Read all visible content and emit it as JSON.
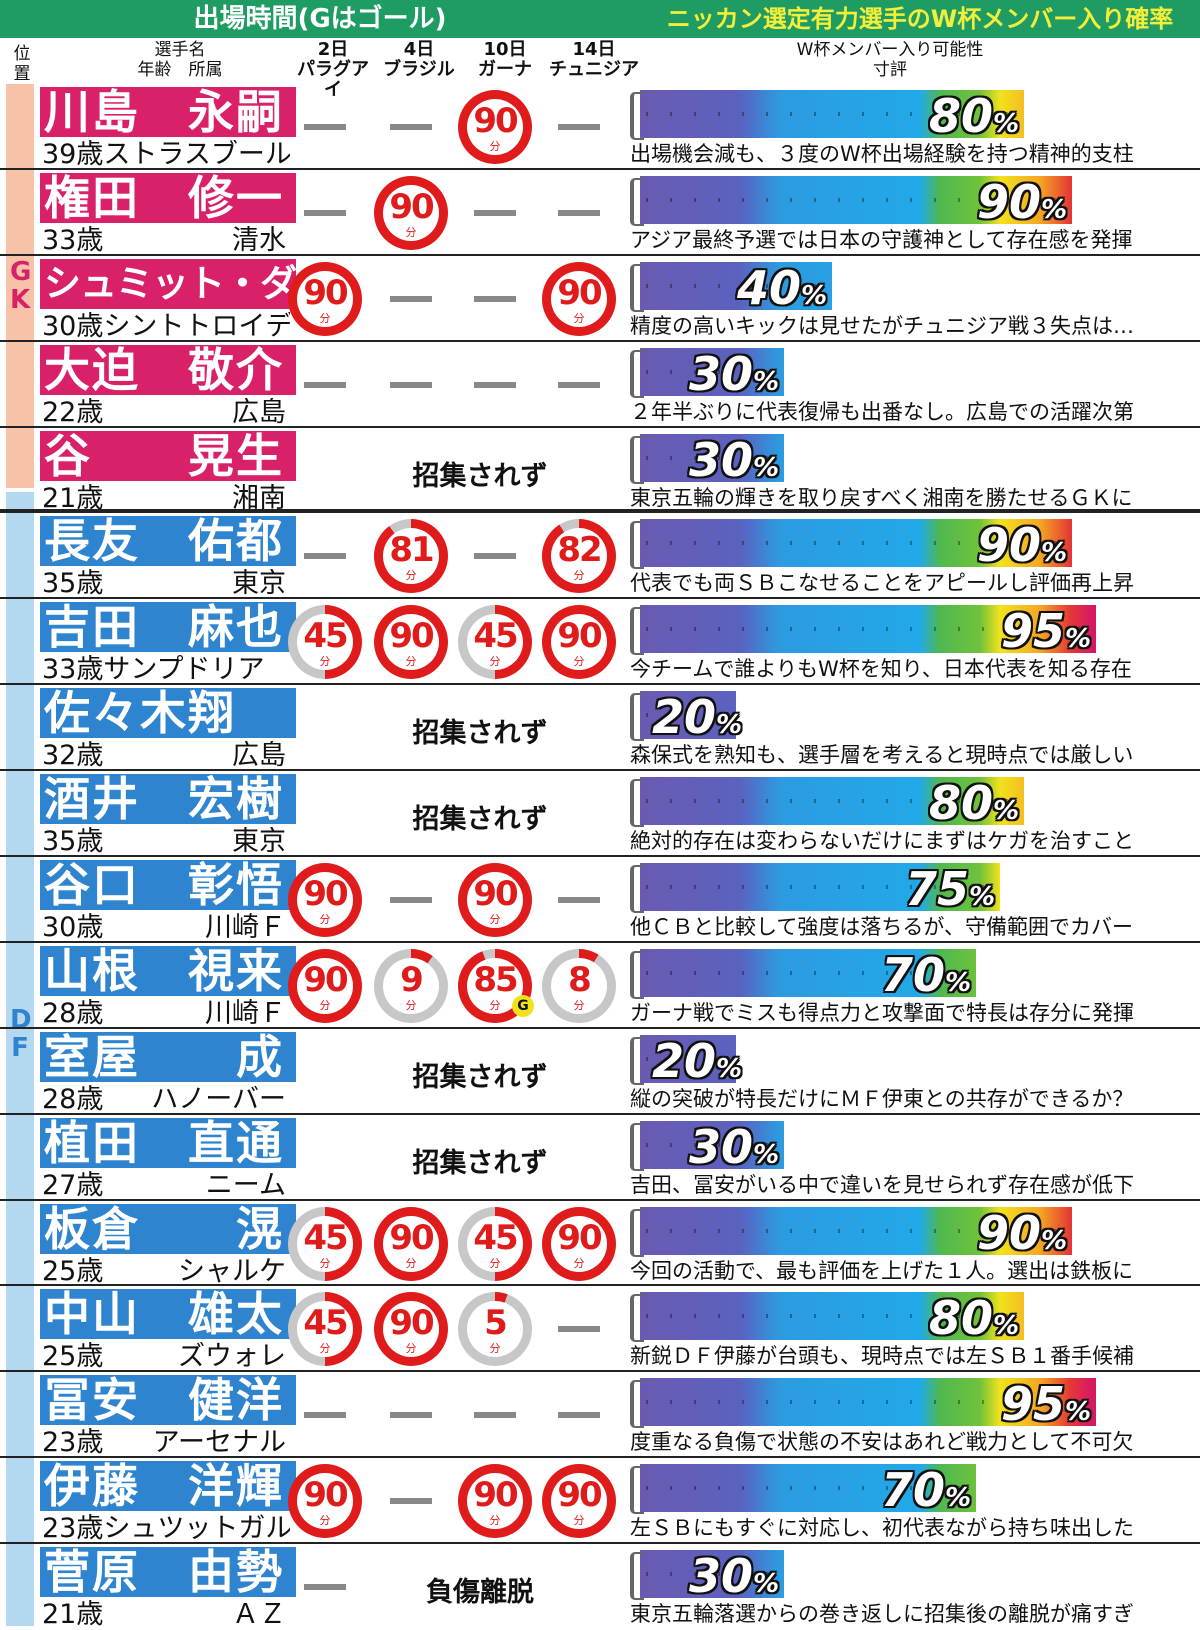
{
  "header": {
    "left": "出場時間(Gはゴール)",
    "right": "ニッカン選定有力選手のW杯メンバー入り確率"
  },
  "columns": {
    "position": "位置",
    "name": "選手名",
    "age_club": "年齢　所属",
    "matches": [
      {
        "date": "2日",
        "opponent": "パラグアイ"
      },
      {
        "date": "4日",
        "opponent": "ブラジル"
      },
      {
        "date": "10日",
        "opponent": "ガーナ"
      },
      {
        "date": "14日",
        "opponent": "チュニジア"
      }
    ],
    "possibility": "W杯メンバー入り可能性",
    "comment": "寸評"
  },
  "positions": {
    "gk": "GK",
    "df": "DF"
  },
  "not_called": "招集されず",
  "injured": "負傷離脱",
  "minute_unit": "分",
  "goal_mark": "G",
  "percent_unit": "%",
  "players": [
    {
      "pos": "gk",
      "name": "川島　永嗣",
      "age": "39歳",
      "club": "ストラスブール",
      "club_left": true,
      "minutes": [
        "-",
        "-",
        "90",
        "-"
      ],
      "goals": [
        false,
        false,
        false,
        false
      ],
      "status": "",
      "pct": 80,
      "comment": "出場機会減も、３度のW杯出場経験を持つ精神的支柱"
    },
    {
      "pos": "gk",
      "name": "権田　修一",
      "age": "33歳",
      "club": "清水",
      "club_left": false,
      "minutes": [
        "-",
        "90",
        "-",
        "-"
      ],
      "goals": [
        false,
        false,
        false,
        false
      ],
      "status": "",
      "pct": 90,
      "comment": "アジア最終予選では日本の守護神として存在感を発揮"
    },
    {
      "pos": "gk",
      "name": "シュミット・ダニエル",
      "age": "30歳",
      "club": "シントトロイデン",
      "club_left": true,
      "minutes": [
        "90",
        "-",
        "-",
        "90"
      ],
      "goals": [
        false,
        false,
        false,
        false
      ],
      "status": "",
      "pct": 40,
      "comment": "精度の高いキックは見せたがチュニジア戦３失点は…"
    },
    {
      "pos": "gk",
      "name": "大迫　敬介",
      "age": "22歳",
      "club": "広島",
      "club_left": false,
      "minutes": [
        "-",
        "-",
        "-",
        "-"
      ],
      "goals": [
        false,
        false,
        false,
        false
      ],
      "status": "",
      "pct": 30,
      "comment": "２年半ぶりに代表復帰も出番なし。広島での活躍次第"
    },
    {
      "pos": "gk",
      "name": "谷　　晃生",
      "age": "21歳",
      "club": "湘南",
      "club_left": false,
      "minutes": [],
      "goals": [],
      "status": "not_called",
      "pct": 30,
      "comment": "東京五輪の輝きを取り戻すべく湘南を勝たせるＧＫに"
    },
    {
      "pos": "df",
      "name": "長友　佑都",
      "age": "35歳",
      "club": "東京",
      "club_left": false,
      "minutes": [
        "-",
        "81",
        "-",
        "82"
      ],
      "goals": [
        false,
        false,
        false,
        false
      ],
      "status": "",
      "pct": 90,
      "comment": "代表でも両ＳＢこなせることをアピールし評価再上昇"
    },
    {
      "pos": "df",
      "name": "吉田　麻也",
      "age": "33歳",
      "club": "サンプドリア",
      "club_left": true,
      "minutes": [
        "45",
        "90",
        "45",
        "90"
      ],
      "goals": [
        false,
        false,
        false,
        false
      ],
      "status": "",
      "pct": 95,
      "comment": "今チームで誰よりもW杯を知り、日本代表を知る存在"
    },
    {
      "pos": "df",
      "name": "佐々木翔",
      "age": "32歳",
      "club": "広島",
      "club_left": false,
      "minutes": [],
      "goals": [],
      "status": "not_called",
      "pct": 20,
      "comment": "森保式を熟知も、選手層を考えると現時点では厳しい"
    },
    {
      "pos": "df",
      "name": "酒井　宏樹",
      "age": "35歳",
      "club": "東京",
      "club_left": false,
      "minutes": [],
      "goals": [],
      "status": "not_called",
      "pct": 80,
      "comment": "絶対的存在は変わらないだけにまずはケガを治すこと"
    },
    {
      "pos": "df",
      "name": "谷口　彰悟",
      "age": "30歳",
      "club": "川崎Ｆ",
      "club_left": false,
      "minutes": [
        "90",
        "-",
        "90",
        "-"
      ],
      "goals": [
        false,
        false,
        false,
        false
      ],
      "status": "",
      "pct": 75,
      "comment": "他ＣＢと比較して強度は落ちるが、守備範囲でカバー"
    },
    {
      "pos": "df",
      "name": "山根　視来",
      "age": "28歳",
      "club": "川崎Ｆ",
      "club_left": false,
      "minutes": [
        "90",
        "9",
        "85",
        "8"
      ],
      "goals": [
        false,
        false,
        true,
        false
      ],
      "status": "",
      "pct": 70,
      "comment": "ガーナ戦でミスも得点力と攻撃面で特長は存分に発揮"
    },
    {
      "pos": "df",
      "name": "室屋　　成",
      "age": "28歳",
      "club": "ハノーバー",
      "club_left": false,
      "minutes": [],
      "goals": [],
      "status": "not_called",
      "pct": 20,
      "comment": "縦の突破が特長だけにＭＦ伊東との共存ができるか？"
    },
    {
      "pos": "df",
      "name": "植田　直通",
      "age": "27歳",
      "club": "ニーム",
      "club_left": false,
      "minutes": [],
      "goals": [],
      "status": "not_called",
      "pct": 30,
      "comment": "吉田、冨安がいる中で違いを見せられず存在感が低下"
    },
    {
      "pos": "df",
      "name": "板倉　　滉",
      "age": "25歳",
      "club": "シャルケ",
      "club_left": false,
      "minutes": [
        "45",
        "90",
        "45",
        "90"
      ],
      "goals": [
        false,
        false,
        false,
        false
      ],
      "status": "",
      "pct": 90,
      "comment": "今回の活動で、最も評価を上げた１人。選出は鉄板に"
    },
    {
      "pos": "df",
      "name": "中山　雄太",
      "age": "25歳",
      "club": "ズウォレ",
      "club_left": false,
      "minutes": [
        "45",
        "90",
        "5",
        "-"
      ],
      "goals": [
        false,
        false,
        false,
        false
      ],
      "status": "",
      "pct": 80,
      "comment": "新鋭ＤＦ伊藤が台頭も、現時点では左ＳＢ１番手候補"
    },
    {
      "pos": "df",
      "name": "冨安　健洋",
      "age": "23歳",
      "club": "アーセナル",
      "club_left": false,
      "minutes": [
        "-",
        "-",
        "-",
        "-"
      ],
      "goals": [
        false,
        false,
        false,
        false
      ],
      "status": "",
      "pct": 95,
      "comment": "度重なる負傷で状態の不安はあれど戦力として不可欠"
    },
    {
      "pos": "df",
      "name": "伊藤　洋輝",
      "age": "23歳",
      "club": "シュツットガルト",
      "club_left": true,
      "minutes": [
        "90",
        "-",
        "90",
        "90"
      ],
      "goals": [
        false,
        false,
        false,
        false
      ],
      "status": "",
      "pct": 70,
      "comment": "左ＳＢにもすぐに対応し、初代表ながら持ち味出した"
    },
    {
      "pos": "df",
      "name": "菅原　由勢",
      "age": "21歳",
      "club": "ＡＺ",
      "club_left": false,
      "minutes": [
        "-"
      ],
      "goals": [
        false
      ],
      "status": "injured",
      "pct": 30,
      "comment": "東京五輪落選からの巻き返しに招集後の離脱が痛すぎ"
    }
  ]
}
